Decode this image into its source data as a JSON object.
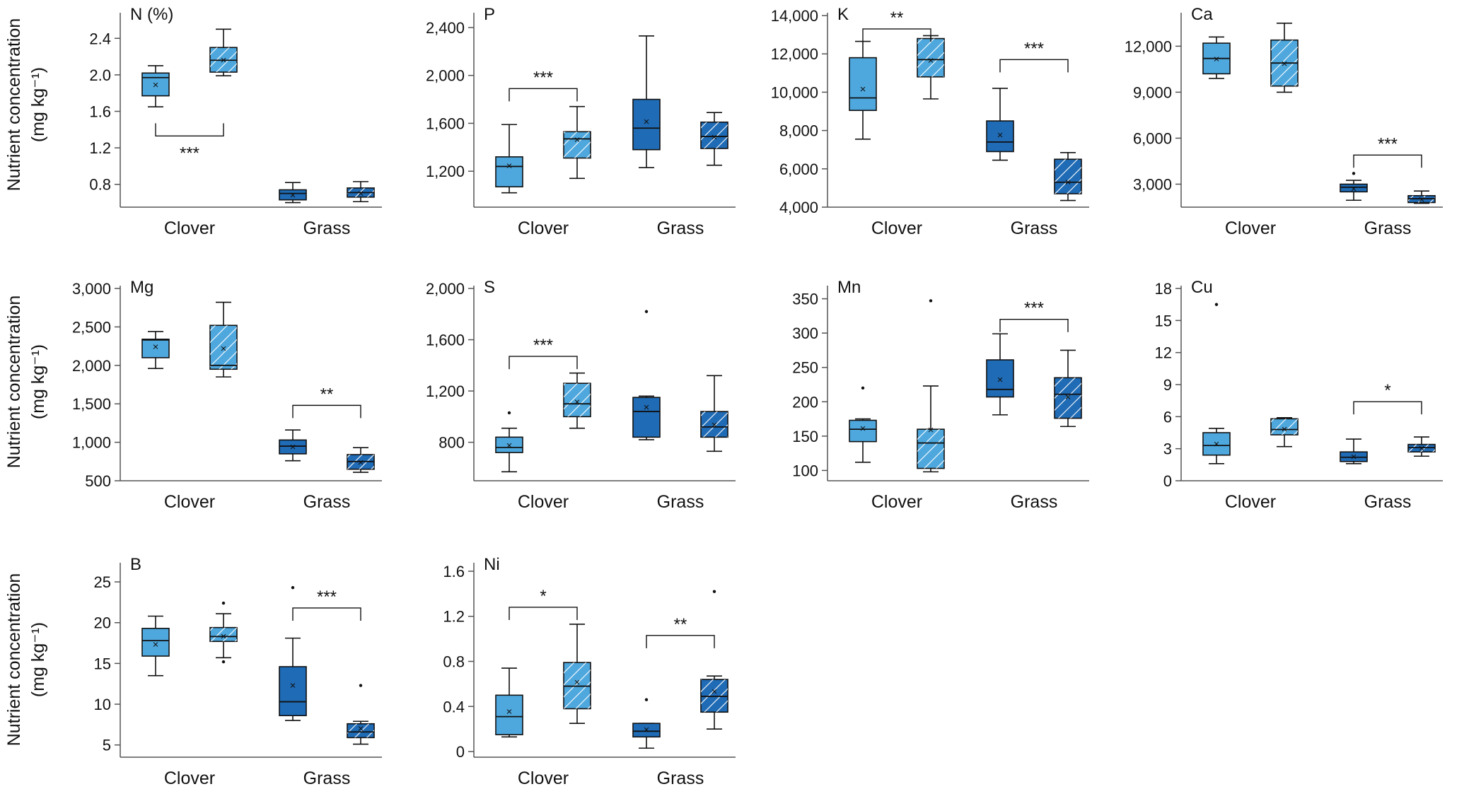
{
  "figure": {
    "ylabel_line1": "Nutrient concentration",
    "ylabel_line2": "(mg kg⁻¹)",
    "categories": [
      "Clover",
      "Grass"
    ],
    "colors": {
      "clover": "#4ea8de",
      "grass": "#1f6bb5",
      "stroke": "#111111"
    }
  },
  "chart_data": [
    {
      "type": "box",
      "title": "N (%)",
      "ylim": [
        0.55,
        2.65
      ],
      "ticks": [
        0.8,
        1.2,
        1.6,
        2.0,
        2.4
      ],
      "tick_labels": [
        "0.8",
        "1.2",
        "1.6",
        "2.0",
        "2.4"
      ],
      "boxes": [
        {
          "category": "Clover",
          "hatched": false,
          "whisker_low": 1.65,
          "q1": 1.77,
          "median": 1.97,
          "q3": 2.02,
          "whisker_high": 2.1,
          "mean": 1.9,
          "outliers": []
        },
        {
          "category": "Clover",
          "hatched": true,
          "whisker_low": 1.99,
          "q1": 2.03,
          "median": 2.16,
          "q3": 2.3,
          "whisker_high": 2.5,
          "mean": 2.17,
          "outliers": []
        },
        {
          "category": "Grass",
          "hatched": false,
          "whisker_low": 0.6,
          "q1": 0.63,
          "median": 0.7,
          "q3": 0.74,
          "whisker_high": 0.82,
          "mean": 0.69,
          "outliers": []
        },
        {
          "category": "Grass",
          "hatched": true,
          "whisker_low": 0.61,
          "q1": 0.66,
          "median": 0.71,
          "q3": 0.76,
          "whisker_high": 0.83,
          "mean": 0.71,
          "outliers": []
        }
      ],
      "sig": [
        {
          "from": 0,
          "to": 1,
          "label": "***",
          "y": 1.33,
          "dir": "up"
        }
      ]
    },
    {
      "type": "box",
      "title": "P",
      "ylim": [
        900,
        2500
      ],
      "ticks": [
        1200,
        1600,
        2000,
        2400
      ],
      "tick_labels": [
        "1,200",
        "1,600",
        "2,000",
        "2,400"
      ],
      "boxes": [
        {
          "category": "Clover",
          "hatched": false,
          "whisker_low": 1020,
          "q1": 1070,
          "median": 1240,
          "q3": 1320,
          "whisker_high": 1590,
          "mean": 1250,
          "outliers": []
        },
        {
          "category": "Clover",
          "hatched": true,
          "whisker_low": 1140,
          "q1": 1310,
          "median": 1470,
          "q3": 1530,
          "whisker_high": 1740,
          "mean": 1470,
          "outliers": []
        },
        {
          "category": "Grass",
          "hatched": false,
          "whisker_low": 1230,
          "q1": 1380,
          "median": 1560,
          "q3": 1800,
          "whisker_high": 2330,
          "mean": 1620,
          "outliers": []
        },
        {
          "category": "Grass",
          "hatched": true,
          "whisker_low": 1250,
          "q1": 1390,
          "median": 1490,
          "q3": 1610,
          "whisker_high": 1690,
          "mean": 1490,
          "outliers": []
        }
      ],
      "sig": [
        {
          "from": 0,
          "to": 1,
          "label": "***",
          "y": 1890,
          "dir": "down"
        }
      ]
    },
    {
      "type": "box",
      "title": "K",
      "ylim": [
        4000,
        14000
      ],
      "ticks": [
        4000,
        6000,
        8000,
        10000,
        12000,
        14000
      ],
      "tick_labels": [
        "4,000",
        "6,000",
        "8,000",
        "10,000",
        "12,000",
        "14,000"
      ],
      "boxes": [
        {
          "category": "Clover",
          "hatched": false,
          "whisker_low": 7550,
          "q1": 9050,
          "median": 9700,
          "q3": 11800,
          "whisker_high": 12650,
          "mean": 10200,
          "outliers": []
        },
        {
          "category": "Clover",
          "hatched": true,
          "whisker_low": 9650,
          "q1": 10800,
          "median": 11700,
          "q3": 12800,
          "whisker_high": 12950,
          "mean": 11700,
          "outliers": []
        },
        {
          "category": "Grass",
          "hatched": false,
          "whisker_low": 6450,
          "q1": 6900,
          "median": 7400,
          "q3": 8500,
          "whisker_high": 10200,
          "mean": 7800,
          "outliers": []
        },
        {
          "category": "Grass",
          "hatched": true,
          "whisker_low": 4350,
          "q1": 4700,
          "median": 5300,
          "q3": 6500,
          "whisker_high": 6850,
          "mean": 5350,
          "outliers": []
        }
      ],
      "sig": [
        {
          "from": 0,
          "to": 1,
          "label": "**",
          "y": 13300,
          "dir": "down"
        },
        {
          "from": 2,
          "to": 3,
          "label": "***",
          "y": 11700,
          "dir": "down"
        }
      ]
    },
    {
      "type": "box",
      "title": "Ca",
      "ylim": [
        1500,
        14000
      ],
      "ticks": [
        3000,
        6000,
        9000,
        12000
      ],
      "tick_labels": [
        "3,000",
        "6,000",
        "9,000",
        "12,000"
      ],
      "boxes": [
        {
          "category": "Clover",
          "hatched": false,
          "whisker_low": 9900,
          "q1": 10200,
          "median": 11200,
          "q3": 12200,
          "whisker_high": 12600,
          "mean": 11200,
          "outliers": []
        },
        {
          "category": "Clover",
          "hatched": true,
          "whisker_low": 9000,
          "q1": 9400,
          "median": 10900,
          "q3": 12400,
          "whisker_high": 13500,
          "mean": 10900,
          "outliers": []
        },
        {
          "category": "Grass",
          "hatched": false,
          "whisker_low": 1950,
          "q1": 2500,
          "median": 2800,
          "q3": 3000,
          "whisker_high": 3250,
          "mean": 2750,
          "outliers": [
            3700
          ]
        },
        {
          "category": "Grass",
          "hatched": true,
          "whisker_low": 1750,
          "q1": 1800,
          "median": 2050,
          "q3": 2250,
          "whisker_high": 2550,
          "mean": 2050,
          "outliers": []
        }
      ],
      "sig": [
        {
          "from": 2,
          "to": 3,
          "label": "***",
          "y": 4900,
          "dir": "down"
        }
      ]
    },
    {
      "type": "box",
      "title": "Mg",
      "ylim": [
        500,
        3000
      ],
      "ticks": [
        500,
        1000,
        1500,
        2000,
        2500,
        3000
      ],
      "tick_labels": [
        "500",
        "1,000",
        "1,500",
        "2,000",
        "2,500",
        "3,000"
      ],
      "boxes": [
        {
          "category": "Clover",
          "hatched": false,
          "whisker_low": 1960,
          "q1": 2100,
          "median": 2330,
          "q3": 2340,
          "whisker_high": 2440,
          "mean": 2250,
          "outliers": []
        },
        {
          "category": "Clover",
          "hatched": true,
          "whisker_low": 1850,
          "q1": 1950,
          "median": 2000,
          "q3": 2520,
          "whisker_high": 2820,
          "mean": 2230,
          "outliers": []
        },
        {
          "category": "Grass",
          "hatched": false,
          "whisker_low": 760,
          "q1": 850,
          "median": 950,
          "q3": 1030,
          "whisker_high": 1160,
          "mean": 950,
          "outliers": []
        },
        {
          "category": "Grass",
          "hatched": true,
          "whisker_low": 610,
          "q1": 650,
          "median": 750,
          "q3": 840,
          "whisker_high": 930,
          "mean": 750,
          "outliers": []
        }
      ],
      "sig": [
        {
          "from": 2,
          "to": 3,
          "label": "**",
          "y": 1480,
          "dir": "down"
        }
      ]
    },
    {
      "type": "box",
      "title": "S",
      "ylim": [
        500,
        2000
      ],
      "ticks": [
        800,
        1200,
        1600,
        2000
      ],
      "tick_labels": [
        "800",
        "1,200",
        "1,600",
        "2,000"
      ],
      "boxes": [
        {
          "category": "Clover",
          "hatched": false,
          "whisker_low": 570,
          "q1": 720,
          "median": 760,
          "q3": 840,
          "whisker_high": 910,
          "mean": 780,
          "outliers": [
            1030
          ]
        },
        {
          "category": "Clover",
          "hatched": true,
          "whisker_low": 910,
          "q1": 1000,
          "median": 1100,
          "q3": 1260,
          "whisker_high": 1340,
          "mean": 1120,
          "outliers": []
        },
        {
          "category": "Grass",
          "hatched": false,
          "whisker_low": 820,
          "q1": 840,
          "median": 1040,
          "q3": 1150,
          "whisker_high": 1160,
          "mean": 1080,
          "outliers": [
            1820
          ]
        },
        {
          "category": "Grass",
          "hatched": true,
          "whisker_low": 730,
          "q1": 840,
          "median": 920,
          "q3": 1040,
          "whisker_high": 1320,
          "mean": 940,
          "outliers": []
        }
      ],
      "sig": [
        {
          "from": 0,
          "to": 1,
          "label": "***",
          "y": 1470,
          "dir": "down"
        }
      ]
    },
    {
      "type": "box",
      "title": "Mn",
      "ylim": [
        85,
        365
      ],
      "ticks": [
        100,
        150,
        200,
        250,
        300,
        350
      ],
      "tick_labels": [
        "100",
        "150",
        "200",
        "250",
        "300",
        "350"
      ],
      "boxes": [
        {
          "category": "Clover",
          "hatched": false,
          "whisker_low": 112,
          "q1": 142,
          "median": 160,
          "q3": 173,
          "whisker_high": 175,
          "mean": 162,
          "outliers": [
            220
          ]
        },
        {
          "category": "Clover",
          "hatched": true,
          "whisker_low": 98,
          "q1": 103,
          "median": 140,
          "q3": 160,
          "whisker_high": 223,
          "mean": 160,
          "outliers": [
            347
          ]
        },
        {
          "category": "Grass",
          "hatched": false,
          "whisker_low": 181,
          "q1": 207,
          "median": 218,
          "q3": 261,
          "whisker_high": 299,
          "mean": 233,
          "outliers": []
        },
        {
          "category": "Grass",
          "hatched": true,
          "whisker_low": 164,
          "q1": 176,
          "median": 211,
          "q3": 235,
          "whisker_high": 275,
          "mean": 208,
          "outliers": []
        }
      ],
      "sig": [
        {
          "from": 2,
          "to": 3,
          "label": "***",
          "y": 320,
          "dir": "down"
        }
      ]
    },
    {
      "type": "box",
      "title": "Cu",
      "ylim": [
        0,
        18
      ],
      "ticks": [
        0,
        3,
        6,
        9,
        12,
        15,
        18
      ],
      "tick_labels": [
        "0",
        "3",
        "6",
        "9",
        "12",
        "15",
        "18"
      ],
      "boxes": [
        {
          "category": "Clover",
          "hatched": false,
          "whisker_low": 1.6,
          "q1": 2.4,
          "median": 3.3,
          "q3": 4.5,
          "whisker_high": 4.9,
          "mean": 3.5,
          "outliers": [
            16.5
          ]
        },
        {
          "category": "Clover",
          "hatched": true,
          "whisker_low": 3.2,
          "q1": 4.3,
          "median": 4.8,
          "q3": 5.8,
          "whisker_high": 5.9,
          "mean": 4.9,
          "outliers": []
        },
        {
          "category": "Grass",
          "hatched": false,
          "whisker_low": 1.6,
          "q1": 1.8,
          "median": 2.2,
          "q3": 2.7,
          "whisker_high": 3.9,
          "mean": 2.3,
          "outliers": []
        },
        {
          "category": "Grass",
          "hatched": true,
          "whisker_low": 2.3,
          "q1": 2.7,
          "median": 3.1,
          "q3": 3.4,
          "whisker_high": 4.1,
          "mean": 3.1,
          "outliers": []
        }
      ],
      "sig": [
        {
          "from": 2,
          "to": 3,
          "label": "*",
          "y": 7.4,
          "dir": "down"
        }
      ]
    },
    {
      "type": "box",
      "title": "B",
      "ylim": [
        3.5,
        27
      ],
      "ticks": [
        5,
        10,
        15,
        20,
        25
      ],
      "tick_labels": [
        "5",
        "10",
        "15",
        "20",
        "25"
      ],
      "boxes": [
        {
          "category": "Clover",
          "hatched": false,
          "whisker_low": 13.5,
          "q1": 15.9,
          "median": 17.8,
          "q3": 19.3,
          "whisker_high": 20.8,
          "mean": 17.4,
          "outliers": []
        },
        {
          "category": "Clover",
          "hatched": true,
          "whisker_low": 15.7,
          "q1": 17.7,
          "median": 18.3,
          "q3": 19.4,
          "whisker_high": 21.1,
          "mean": 18.4,
          "outliers": [
            22.4,
            15.2
          ]
        },
        {
          "category": "Grass",
          "hatched": false,
          "whisker_low": 8.0,
          "q1": 8.6,
          "median": 10.3,
          "q3": 14.6,
          "whisker_high": 18.1,
          "mean": 12.4,
          "outliers": [
            24.3
          ]
        },
        {
          "category": "Grass",
          "hatched": true,
          "whisker_low": 5.1,
          "q1": 5.9,
          "median": 6.6,
          "q3": 7.6,
          "whisker_high": 7.9,
          "mean": 7.1,
          "outliers": [
            12.3
          ]
        }
      ],
      "sig": [
        {
          "from": 2,
          "to": 3,
          "label": "***",
          "y": 21.8,
          "dir": "down"
        }
      ]
    },
    {
      "type": "box",
      "title": "Ni",
      "ylim": [
        -0.05,
        1.65
      ],
      "ticks": [
        0,
        0.4,
        0.8,
        1.2,
        1.6
      ],
      "tick_labels": [
        "0",
        "0.4",
        "0.8",
        "1.2",
        "1.6"
      ],
      "boxes": [
        {
          "category": "Clover",
          "hatched": false,
          "whisker_low": 0.13,
          "q1": 0.15,
          "median": 0.31,
          "q3": 0.5,
          "whisker_high": 0.74,
          "mean": 0.36,
          "outliers": []
        },
        {
          "category": "Clover",
          "hatched": true,
          "whisker_low": 0.25,
          "q1": 0.38,
          "median": 0.58,
          "q3": 0.79,
          "whisker_high": 1.13,
          "mean": 0.62,
          "outliers": []
        },
        {
          "category": "Grass",
          "hatched": false,
          "whisker_low": 0.03,
          "q1": 0.13,
          "median": 0.18,
          "q3": 0.25,
          "whisker_high": 0.25,
          "mean": 0.2,
          "outliers": [
            0.46
          ]
        },
        {
          "category": "Grass",
          "hatched": true,
          "whisker_low": 0.2,
          "q1": 0.35,
          "median": 0.49,
          "q3": 0.64,
          "whisker_high": 0.67,
          "mean": 0.54,
          "outliers": [
            1.42
          ]
        }
      ],
      "sig": [
        {
          "from": 0,
          "to": 1,
          "label": "*",
          "y": 1.28,
          "dir": "down"
        },
        {
          "from": 2,
          "to": 3,
          "label": "**",
          "y": 1.03,
          "dir": "down"
        }
      ]
    }
  ]
}
